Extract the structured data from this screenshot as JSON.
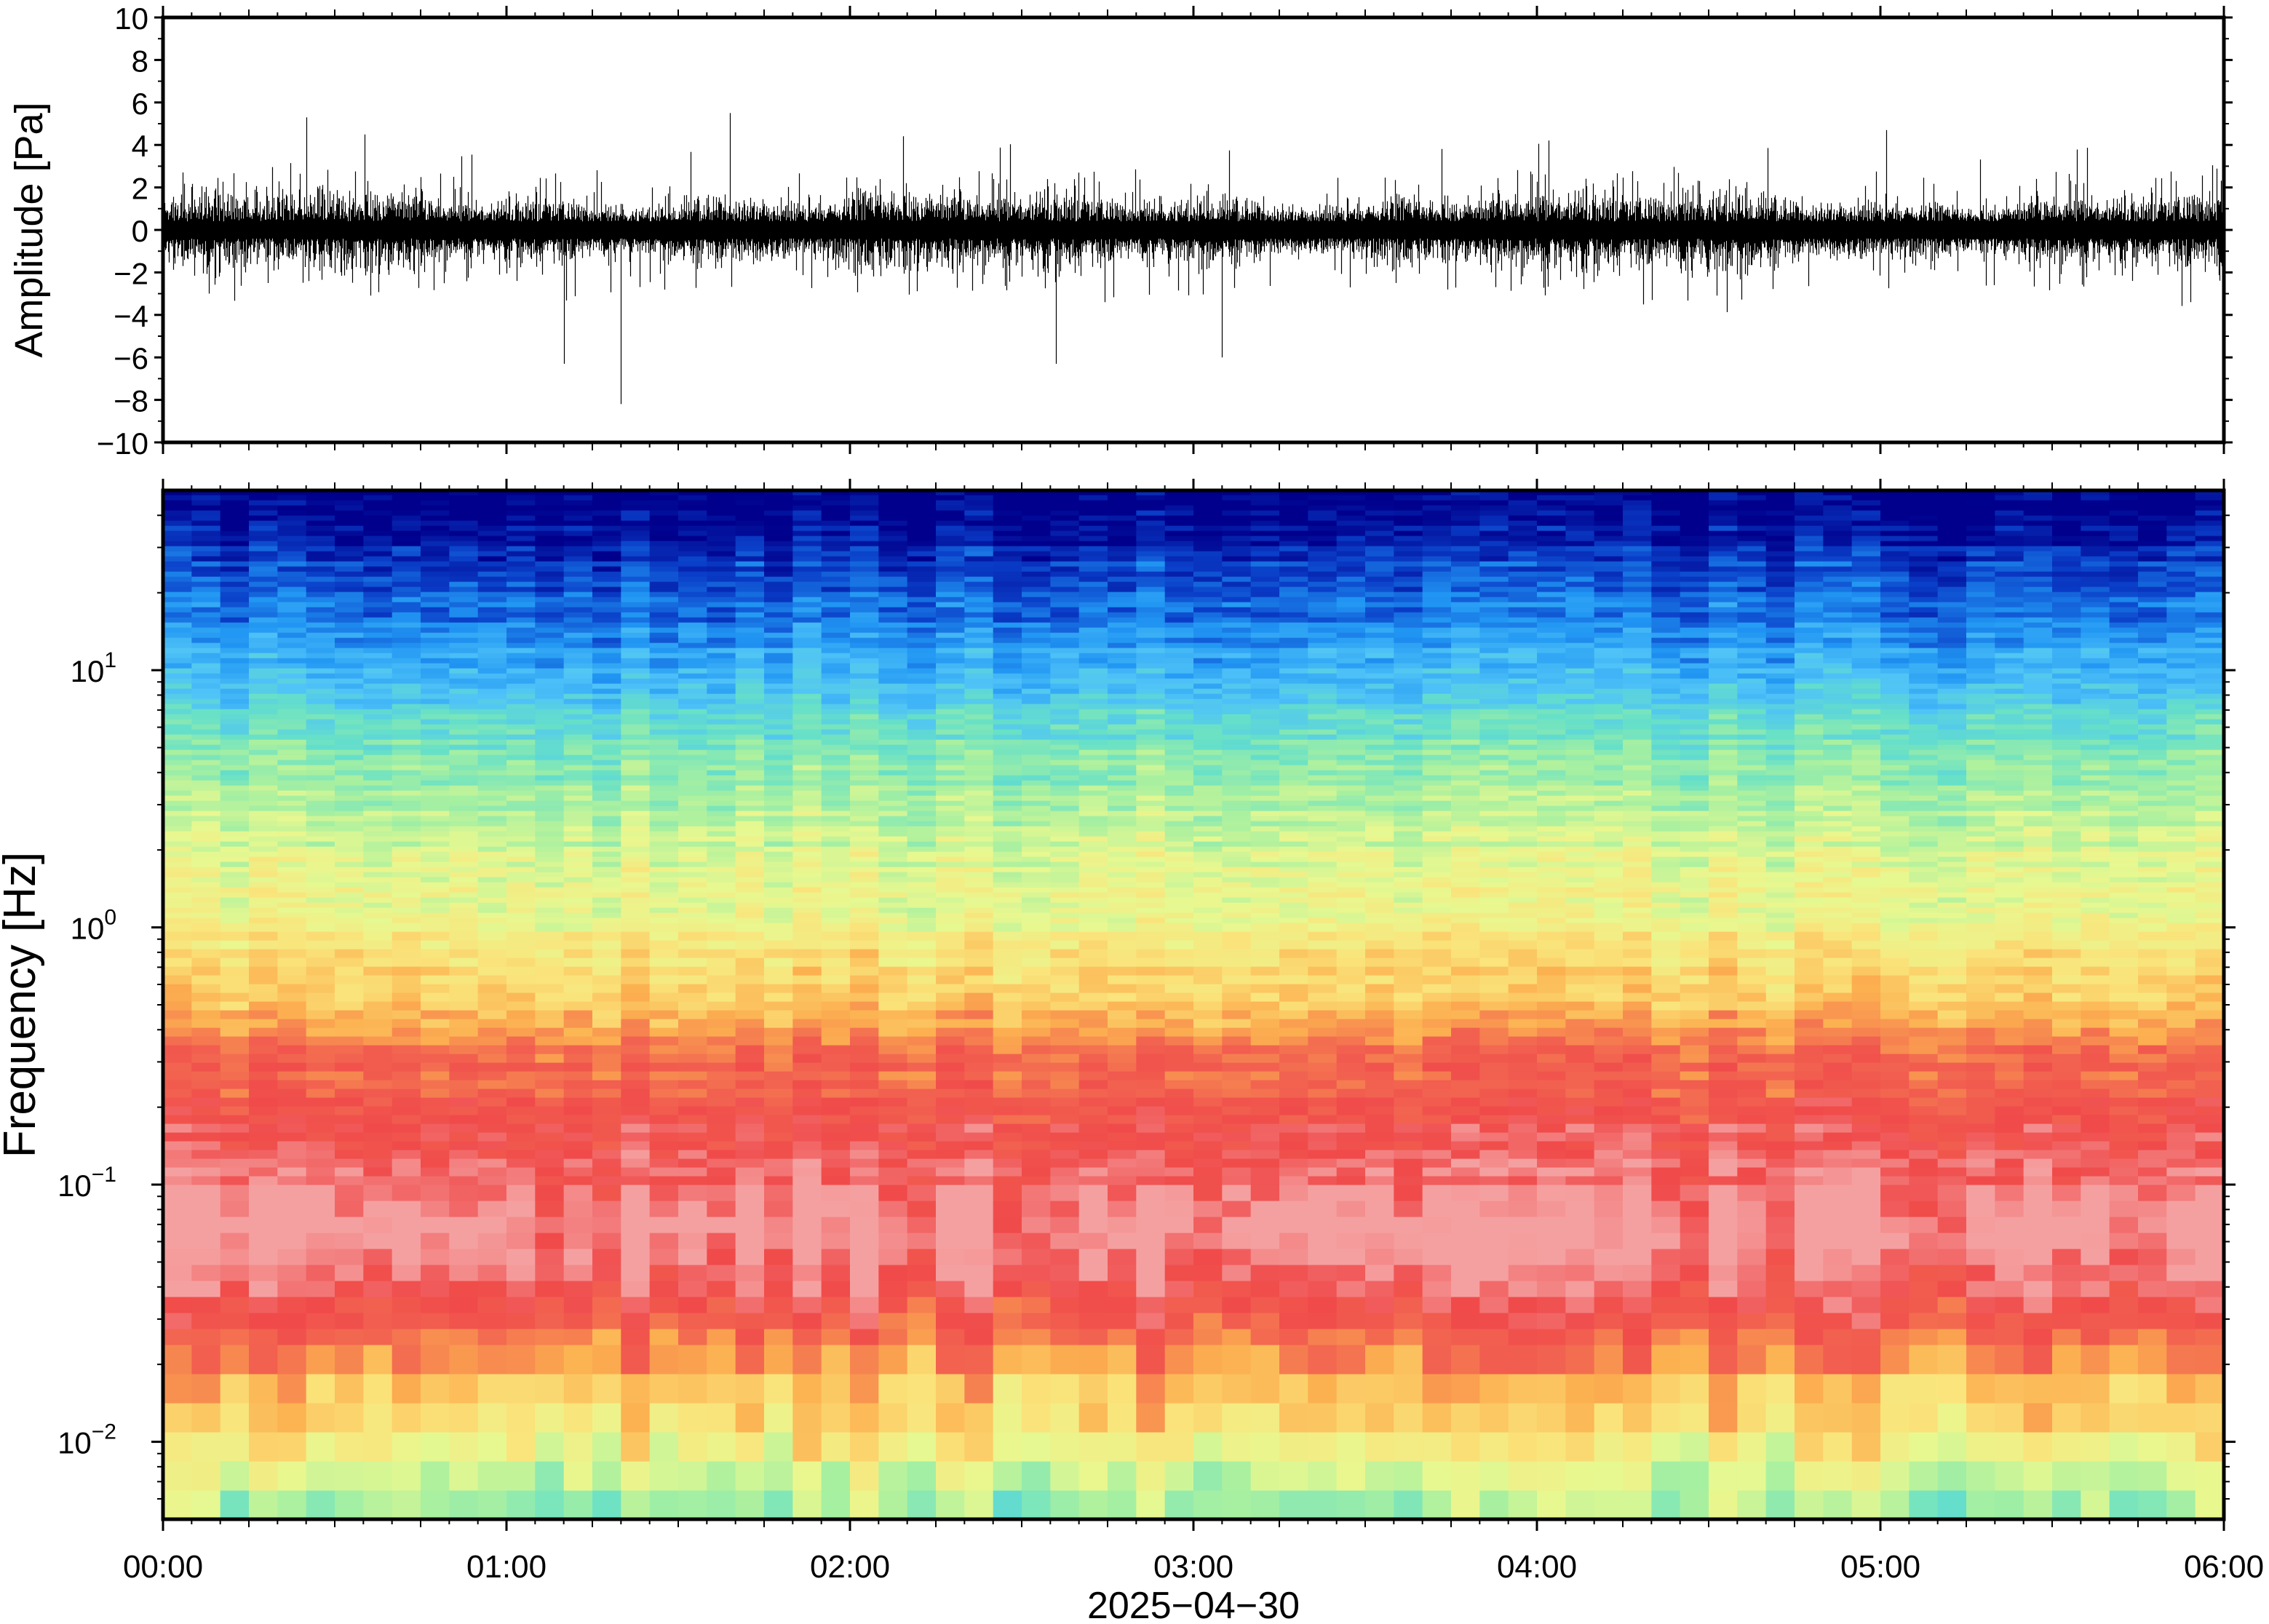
{
  "chart_data": [
    {
      "type": "line",
      "panel": "waveform",
      "ylabel": "Amplitude [Pa]",
      "ylim": [
        -10,
        10
      ],
      "yticks": [
        {
          "value": 10,
          "label": "10"
        },
        {
          "value": 8,
          "label": "8"
        },
        {
          "value": 6,
          "label": "6"
        },
        {
          "value": 4,
          "label": "4"
        },
        {
          "value": 2,
          "label": "2"
        },
        {
          "value": 0,
          "label": "0"
        },
        {
          "value": -2,
          "label": "−2"
        },
        {
          "value": -4,
          "label": "−4"
        },
        {
          "value": -6,
          "label": "−6"
        },
        {
          "value": -8,
          "label": "−8"
        },
        {
          "value": -10,
          "label": "−10"
        }
      ],
      "xlim": [
        "2025-04-30 00:00",
        "2025-04-30 06:00"
      ],
      "series_color": "#000000",
      "typical_range": [
        -2.5,
        2.5
      ],
      "notable_peaks": [
        {
          "time": "00:25",
          "value": 5.3
        },
        {
          "time": "01:10",
          "value": -6.3
        },
        {
          "time": "01:20",
          "value": -8.2
        },
        {
          "time": "01:39",
          "value": 5.5
        },
        {
          "time": "02:36",
          "value": -6.3
        },
        {
          "time": "03:05",
          "value": -6.0
        },
        {
          "time": "05:01",
          "value": 4.7
        }
      ],
      "grid": false
    },
    {
      "type": "heatmap",
      "panel": "spectrogram",
      "ylabel": "Frequency [Hz]",
      "yscale": "log",
      "ylim": [
        0.005,
        50
      ],
      "ytick_labels": [
        {
          "value": 0.01,
          "base": "10",
          "exp": "−2"
        },
        {
          "value": 0.1,
          "base": "10",
          "exp": "−1"
        },
        {
          "value": 1,
          "base": "10",
          "exp": "0"
        },
        {
          "value": 10,
          "base": "10",
          "exp": "1"
        }
      ],
      "xlabel": "2025−04−30",
      "xticks": [
        "00:00",
        "01:00",
        "02:00",
        "03:00",
        "04:00",
        "05:00",
        "06:00"
      ],
      "xlim": [
        "2025-04-30 00:00",
        "2025-04-30 06:00"
      ],
      "colormap": [
        "#00008c",
        "#0a3ec8",
        "#2196f3",
        "#4fc3f7",
        "#66e0c8",
        "#a8f0a0",
        "#e8f890",
        "#fae37a",
        "#fcb050",
        "#f26450",
        "#f04a4a",
        "#f5a0a0"
      ],
      "band_colors_by_frequency": [
        {
          "freq_hz": 40,
          "color": "#00008c"
        },
        {
          "freq_hz": 25,
          "color": "#0a3ec8"
        },
        {
          "freq_hz": 14,
          "color": "#2196f3"
        },
        {
          "freq_hz": 9,
          "color": "#4fc3f7"
        },
        {
          "freq_hz": 6,
          "color": "#66e0c8"
        },
        {
          "freq_hz": 3.5,
          "color": "#a8f0a0"
        },
        {
          "freq_hz": 1.5,
          "color": "#e8f890"
        },
        {
          "freq_hz": 0.7,
          "color": "#fae37a"
        },
        {
          "freq_hz": 0.45,
          "color": "#fcb050"
        },
        {
          "freq_hz": 0.3,
          "color": "#f26450"
        },
        {
          "freq_hz": 0.15,
          "color": "#f04a4a"
        },
        {
          "freq_hz": 0.07,
          "color": "#f5a0a0"
        },
        {
          "freq_hz": 0.035,
          "color": "#f04a4a"
        },
        {
          "freq_hz": 0.02,
          "color": "#fcb050"
        },
        {
          "freq_hz": 0.012,
          "color": "#fae37a"
        },
        {
          "freq_hz": 0.006,
          "color": "#a8f0a0"
        }
      ],
      "grid": false
    }
  ]
}
